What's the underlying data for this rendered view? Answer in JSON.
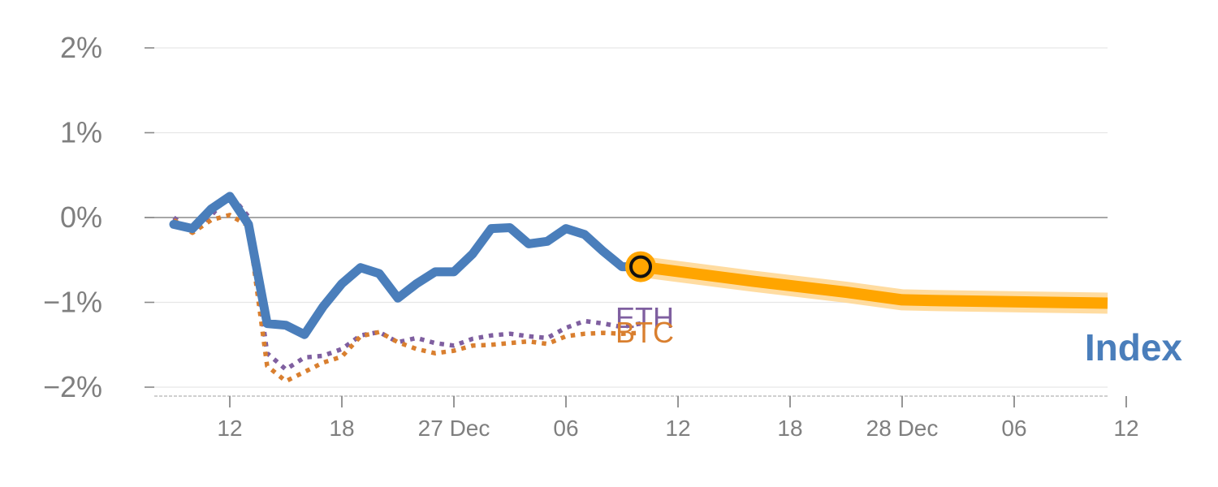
{
  "chart_data": {
    "type": "line",
    "y_unit": "%",
    "ylim": [
      -2.1,
      2.1
    ],
    "y_ticks": [
      {
        "value": 2,
        "label": "2%"
      },
      {
        "value": 1,
        "label": "1%"
      },
      {
        "value": 0,
        "label": "0%"
      },
      {
        "value": -1,
        "label": "−1%"
      },
      {
        "value": -2,
        "label": "−2%"
      }
    ],
    "x_ticks": [
      {
        "t": 3,
        "label": "12"
      },
      {
        "t": 9,
        "label": "18"
      },
      {
        "t": 15,
        "label": "27 Dec"
      },
      {
        "t": 21,
        "label": "06"
      },
      {
        "t": 27,
        "label": "12"
      },
      {
        "t": 33,
        "label": "18"
      },
      {
        "t": 39,
        "label": "28 Dec"
      },
      {
        "t": 45,
        "label": "06"
      },
      {
        "t": 51,
        "label": "12"
      }
    ],
    "grid": "horizontal",
    "series": [
      {
        "name": "Index",
        "style": "solid",
        "color": "#4a7ebb",
        "x": [
          0,
          1,
          2,
          3,
          4,
          5,
          6,
          7,
          8,
          9,
          10,
          11,
          12,
          13,
          14,
          15,
          16,
          17,
          18,
          19,
          20,
          21,
          22,
          23,
          24,
          25
        ],
        "values": [
          -0.08,
          -0.13,
          0.1,
          0.25,
          -0.08,
          -1.25,
          -1.27,
          -1.38,
          -1.05,
          -0.78,
          -0.59,
          -0.66,
          -0.95,
          -0.78,
          -0.64,
          -0.64,
          -0.43,
          -0.13,
          -0.12,
          -0.31,
          -0.28,
          -0.13,
          -0.2,
          -0.4,
          -0.58,
          -0.58
        ]
      },
      {
        "name": "ETH",
        "style": "dotted",
        "color": "#7f5fa0",
        "x": [
          0,
          1,
          2,
          3,
          4,
          5,
          6,
          7,
          8,
          9,
          10,
          11,
          12,
          13,
          14,
          15,
          16,
          17,
          18,
          19,
          20,
          21,
          22,
          23,
          24,
          25
        ],
        "values": [
          0.0,
          -0.17,
          0.02,
          0.28,
          0.01,
          -1.6,
          -1.79,
          -1.65,
          -1.63,
          -1.55,
          -1.39,
          -1.35,
          -1.47,
          -1.42,
          -1.48,
          -1.51,
          -1.43,
          -1.39,
          -1.37,
          -1.4,
          -1.42,
          -1.3,
          -1.22,
          -1.25,
          -1.29,
          -1.25
        ]
      },
      {
        "name": "BTC",
        "style": "dotted",
        "color": "#d97f2f",
        "x": [
          0,
          1,
          2,
          3,
          4,
          5,
          6,
          7,
          8,
          9,
          10,
          11,
          12,
          13,
          14,
          15,
          16,
          17,
          18,
          19,
          20,
          21,
          22,
          23,
          24,
          25
        ],
        "values": [
          -0.03,
          -0.18,
          -0.03,
          0.03,
          -0.1,
          -1.75,
          -1.93,
          -1.82,
          -1.71,
          -1.64,
          -1.4,
          -1.35,
          -1.47,
          -1.55,
          -1.6,
          -1.57,
          -1.51,
          -1.5,
          -1.48,
          -1.46,
          -1.49,
          -1.4,
          -1.37,
          -1.36,
          -1.37,
          -1.36
        ]
      },
      {
        "name": "Index",
        "style": "projection",
        "color": "#ffa500",
        "x": [
          25,
          31,
          36,
          39,
          41,
          50
        ],
        "values": [
          -0.58,
          -0.75,
          -0.88,
          -0.97,
          -0.98,
          -1.01
        ]
      }
    ],
    "marker": {
      "x": 25,
      "value": -0.58
    },
    "labels": {
      "eth": "ETH",
      "btc": "BTC",
      "index": "Index"
    }
  }
}
